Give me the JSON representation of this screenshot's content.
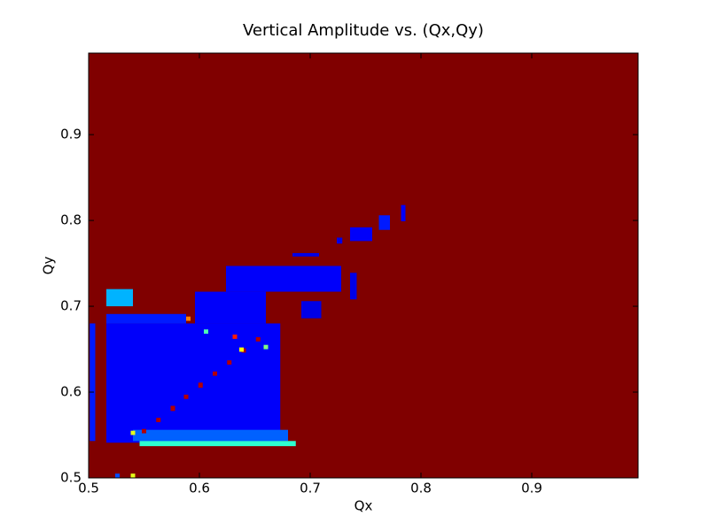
{
  "chart_data": {
    "type": "heatmap",
    "title": "Vertical Amplitude vs. (Qx,Qy)",
    "x_label": "Qx",
    "y_label": "Qy",
    "xlim": [
      0.5,
      0.996
    ],
    "ylim": [
      0.5,
      0.995
    ],
    "xticks": [
      0.5,
      0.6,
      0.7,
      0.8,
      0.9
    ],
    "yticks": [
      0.5,
      0.6,
      0.7,
      0.8,
      0.9
    ],
    "colormap": "jet",
    "background_value": 1.0,
    "cells": [
      {
        "x": [
          0.501,
          0.506
        ],
        "y": [
          0.543,
          0.68
        ],
        "value": 0.15
      },
      {
        "x": [
          0.516,
          0.673
        ],
        "y": [
          0.541,
          0.68
        ],
        "value": 0.12
      },
      {
        "x": [
          0.54,
          0.68
        ],
        "y": [
          0.543,
          0.556
        ],
        "value": 0.22
      },
      {
        "x": [
          0.546,
          0.687
        ],
        "y": [
          0.537,
          0.543
        ],
        "value": 0.42
      },
      {
        "x": [
          0.516,
          0.588
        ],
        "y": [
          0.68,
          0.691
        ],
        "value": 0.15
      },
      {
        "x": [
          0.596,
          0.66
        ],
        "y": [
          0.68,
          0.717
        ],
        "value": 0.12
      },
      {
        "x": [
          0.624,
          0.728
        ],
        "y": [
          0.717,
          0.747
        ],
        "value": 0.12
      },
      {
        "x": [
          0.516,
          0.54
        ],
        "y": [
          0.7,
          0.72
        ],
        "value": 0.3
      },
      {
        "x": [
          0.684,
          0.708
        ],
        "y": [
          0.758,
          0.762
        ],
        "value": 0.1
      },
      {
        "x": [
          0.724,
          0.729
        ],
        "y": [
          0.773,
          0.78
        ],
        "value": 0.1
      },
      {
        "x": [
          0.736,
          0.756
        ],
        "y": [
          0.776,
          0.792
        ],
        "value": 0.12
      },
      {
        "x": [
          0.762,
          0.772
        ],
        "y": [
          0.789,
          0.806
        ],
        "value": 0.15
      },
      {
        "x": [
          0.782,
          0.786
        ],
        "y": [
          0.799,
          0.818
        ],
        "value": 0.12
      },
      {
        "x": [
          0.736,
          0.742
        ],
        "y": [
          0.708,
          0.739
        ],
        "value": 0.1
      },
      {
        "x": [
          0.692,
          0.71
        ],
        "y": [
          0.686,
          0.706
        ],
        "value": 0.1
      },
      {
        "x": [
          0.548,
          0.552
        ],
        "y": [
          0.552,
          0.557
        ],
        "value": 0.95
      },
      {
        "x": [
          0.561,
          0.565
        ],
        "y": [
          0.565,
          0.57
        ],
        "value": 0.95
      },
      {
        "x": [
          0.574,
          0.578
        ],
        "y": [
          0.578,
          0.584
        ],
        "value": 0.95
      },
      {
        "x": [
          0.586,
          0.59
        ],
        "y": [
          0.592,
          0.597
        ],
        "value": 0.95
      },
      {
        "x": [
          0.599,
          0.603
        ],
        "y": [
          0.605,
          0.611
        ],
        "value": 0.95
      },
      {
        "x": [
          0.612,
          0.616
        ],
        "y": [
          0.619,
          0.624
        ],
        "value": 0.95
      },
      {
        "x": [
          0.625,
          0.629
        ],
        "y": [
          0.632,
          0.637
        ],
        "value": 0.95
      },
      {
        "x": [
          0.638,
          0.642
        ],
        "y": [
          0.646,
          0.651
        ],
        "value": 0.95
      },
      {
        "x": [
          0.651,
          0.655
        ],
        "y": [
          0.659,
          0.664
        ],
        "value": 0.95
      },
      {
        "x": [
          0.63,
          0.634
        ],
        "y": [
          0.662,
          0.667
        ],
        "value": 0.85
      },
      {
        "x": [
          0.588,
          0.592
        ],
        "y": [
          0.683,
          0.688
        ],
        "value": 0.75
      },
      {
        "x": [
          0.636,
          0.64
        ],
        "y": [
          0.647,
          0.652
        ],
        "value": 0.62
      },
      {
        "x": [
          0.538,
          0.542
        ],
        "y": [
          0.55,
          0.555
        ],
        "value": 0.6
      },
      {
        "x": [
          0.604,
          0.608
        ],
        "y": [
          0.668,
          0.673
        ],
        "value": 0.45
      },
      {
        "x": [
          0.658,
          0.662
        ],
        "y": [
          0.65,
          0.655
        ],
        "value": 0.5
      },
      {
        "x": [
          0.538,
          0.542
        ],
        "y": [
          0.5,
          0.505
        ],
        "value": 0.6
      },
      {
        "x": [
          0.524,
          0.528
        ],
        "y": [
          0.5,
          0.505
        ],
        "value": 0.2
      }
    ]
  }
}
